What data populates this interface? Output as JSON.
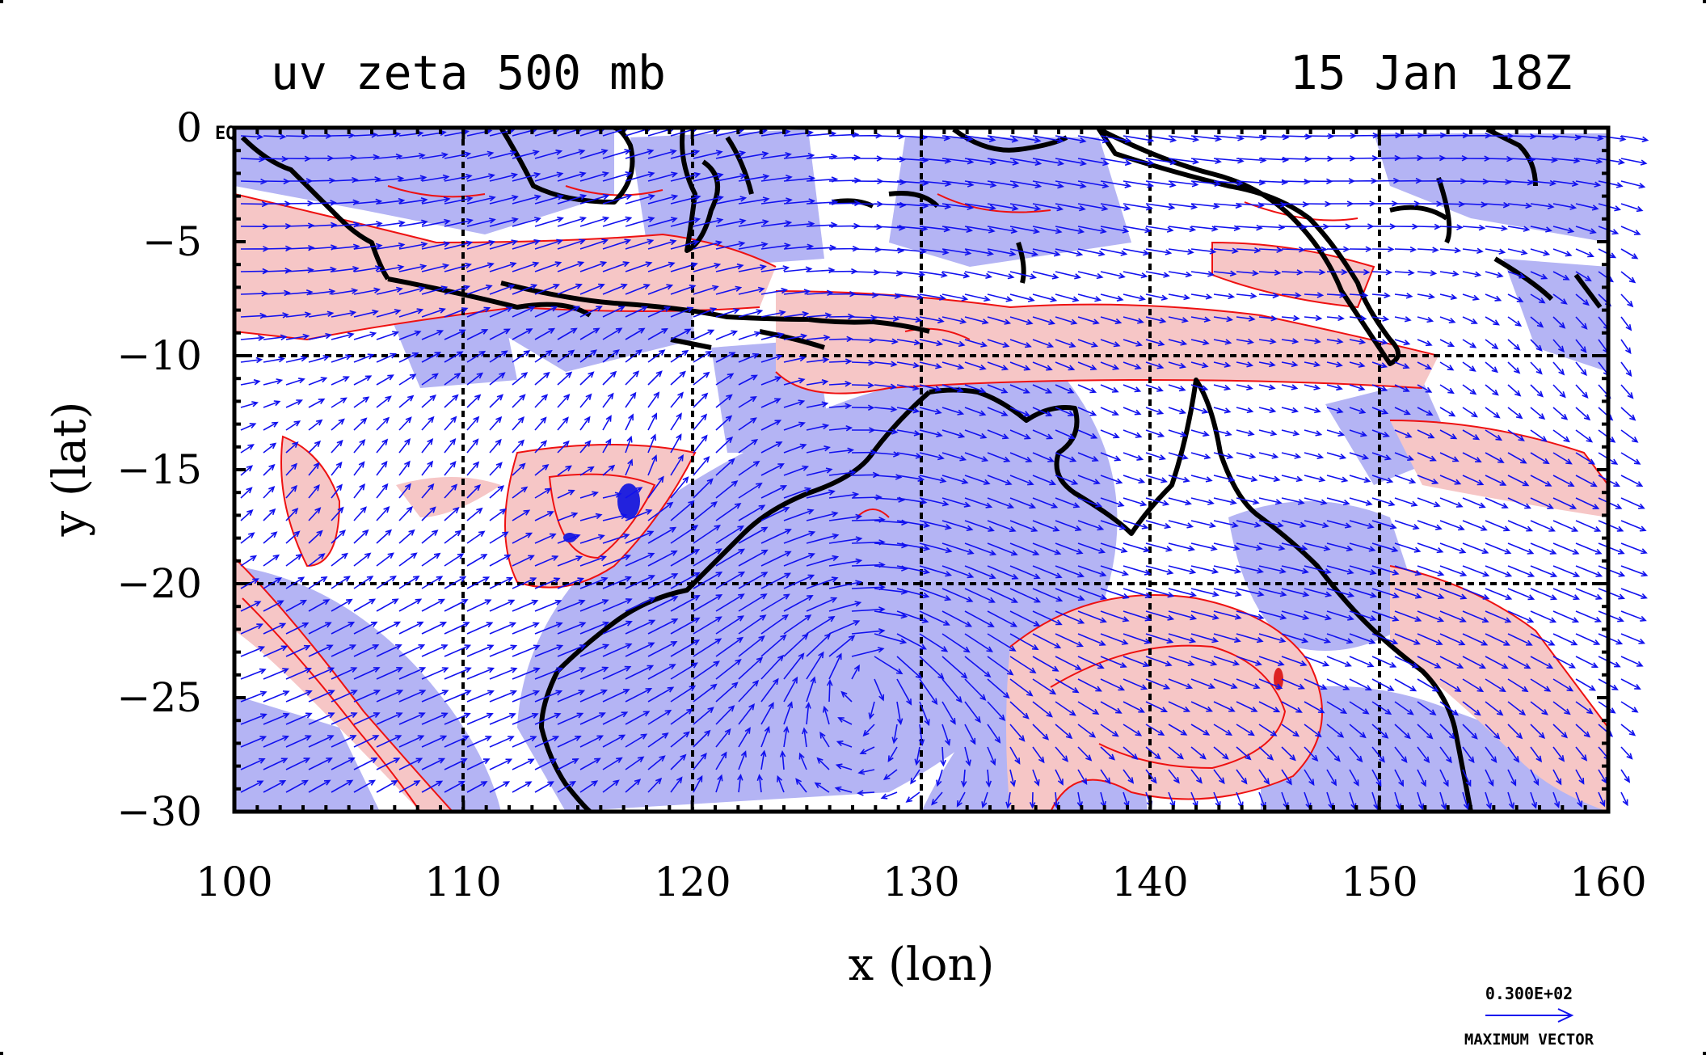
{
  "title_left": "uv zeta 500 mb",
  "title_right": "15 Jan 18Z",
  "x_axis": {
    "label": "x (lon)",
    "range": [
      100,
      160
    ],
    "ticks": [
      "100",
      "110",
      "120",
      "130",
      "140",
      "150",
      "160"
    ]
  },
  "y_axis": {
    "label": "y (lat)",
    "range": [
      -30,
      0
    ],
    "ticks": [
      "0",
      "−5",
      "−10",
      "−15",
      "−20",
      "−25",
      "−30"
    ]
  },
  "eq_marker": "EQ",
  "vector_key": {
    "value_label": "0.300E+02",
    "caption": "MAXIMUM VECTOR"
  },
  "grid_lines": {
    "lon": [
      110,
      120,
      130,
      140,
      150
    ],
    "lat": [
      -10,
      -20
    ]
  },
  "colors": {
    "positive_fill": "#f6c6c6",
    "negative_fill": "#b4b4f4",
    "contour": "#ee1111",
    "vectors": "#1111ee",
    "coast": "#000000"
  }
}
